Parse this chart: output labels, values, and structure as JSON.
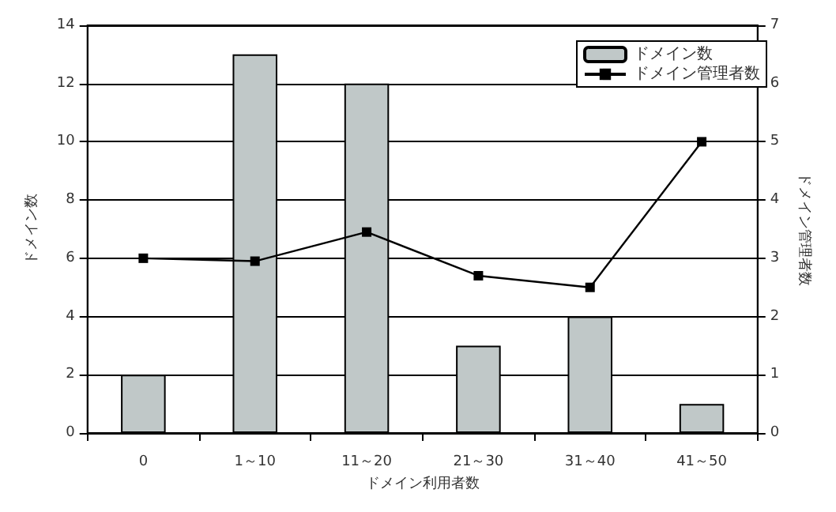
{
  "chart_data": {
    "type": "bar",
    "xlabel": "ドメイン利用者数",
    "ylabel": "ドメイン数",
    "y2label": "ドメイン管理者数",
    "categories": [
      "0",
      "1～10",
      "11～20",
      "21～30",
      "31～40",
      "41～50"
    ],
    "series": [
      {
        "name": "ドメイン数",
        "color": "#c0c8c8",
        "values": [
          2,
          13,
          12,
          3,
          4,
          1
        ]
      },
      {
        "name": "ドメイン管理者数",
        "type": "line",
        "axis": "y2",
        "color": "#000000",
        "marker": "square",
        "values": [
          3,
          2.95,
          3.45,
          2.7,
          2.5,
          5
        ]
      }
    ],
    "ylim": [
      0,
      14
    ],
    "yticks": [
      0,
      2,
      4,
      6,
      8,
      10,
      12,
      14
    ],
    "y2lim": [
      0,
      7
    ],
    "y2ticks": [
      0,
      1,
      2,
      3,
      4,
      5,
      6,
      7
    ],
    "grid": "y",
    "legend": "top right"
  }
}
